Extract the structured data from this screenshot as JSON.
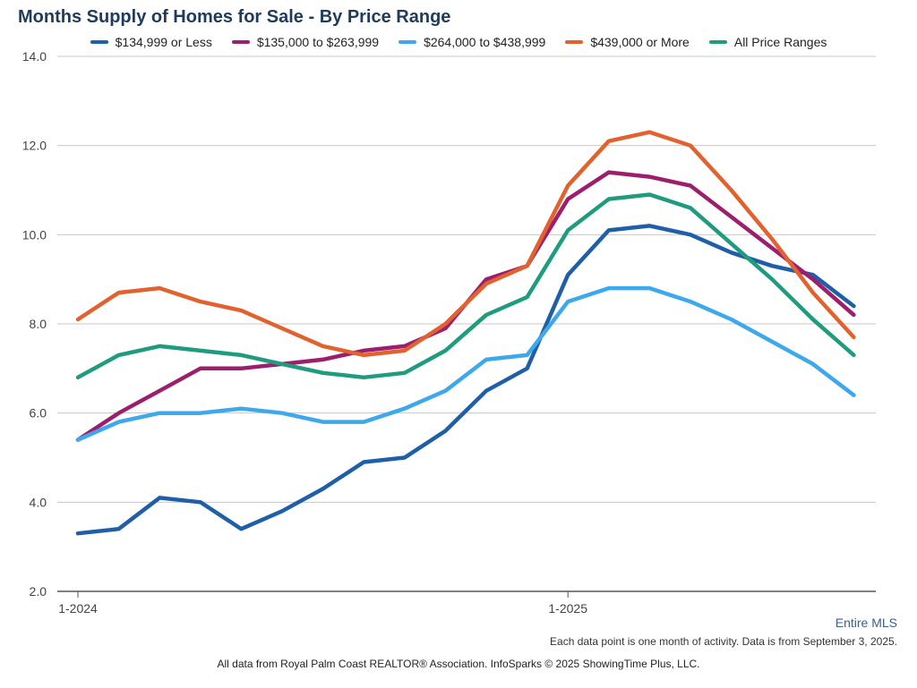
{
  "chart_data": {
    "type": "line",
    "title": "Months Supply of Homes for Sale - By Price Range",
    "xlabel": "",
    "ylabel": "",
    "ylim": [
      2.0,
      14.0
    ],
    "yticks": [
      "2.0",
      "4.0",
      "6.0",
      "8.0",
      "10.0",
      "12.0",
      "14.0"
    ],
    "xtick_labels": [
      {
        "label": "1-2024",
        "index": 0
      },
      {
        "label": "1-2025",
        "index": 12
      }
    ],
    "grid": true,
    "legend_position": "top",
    "x": [
      "1-2024",
      "2-2024",
      "3-2024",
      "4-2024",
      "5-2024",
      "6-2024",
      "7-2024",
      "8-2024",
      "9-2024",
      "10-2024",
      "11-2024",
      "12-2024",
      "1-2025",
      "2-2025",
      "3-2025",
      "4-2025",
      "5-2025",
      "6-2025",
      "7-2025",
      "8-2025"
    ],
    "series": [
      {
        "name": "$134,999 or Less",
        "color": "#1f5fa8",
        "values": [
          3.3,
          3.4,
          4.1,
          4.0,
          3.4,
          3.8,
          4.3,
          4.9,
          5.0,
          5.6,
          6.5,
          7.0,
          9.1,
          10.1,
          10.2,
          10.0,
          9.6,
          9.3,
          9.1,
          8.4
        ]
      },
      {
        "name": "$135,000 to $263,999",
        "color": "#9c1f6e",
        "values": [
          5.4,
          6.0,
          6.5,
          7.0,
          7.0,
          7.1,
          7.2,
          7.4,
          7.5,
          7.9,
          9.0,
          9.3,
          10.8,
          11.4,
          11.3,
          11.1,
          10.4,
          9.7,
          9.0,
          8.2
        ]
      },
      {
        "name": "$264,000 to $438,999",
        "color": "#3ea8ec",
        "values": [
          5.4,
          5.8,
          6.0,
          6.0,
          6.1,
          6.0,
          5.8,
          5.8,
          6.1,
          6.5,
          7.2,
          7.3,
          8.5,
          8.8,
          8.8,
          8.5,
          8.1,
          7.6,
          7.1,
          6.4
        ]
      },
      {
        "name": "$439,000 or More",
        "color": "#e2622f",
        "values": [
          8.1,
          8.7,
          8.8,
          8.5,
          8.3,
          7.9,
          7.5,
          7.3,
          7.4,
          8.0,
          8.9,
          9.3,
          11.1,
          12.1,
          12.3,
          12.0,
          11.0,
          9.9,
          8.7,
          7.7
        ]
      },
      {
        "name": "All Price Ranges",
        "color": "#1f9c7e",
        "values": [
          6.8,
          7.3,
          7.5,
          7.4,
          7.3,
          7.1,
          6.9,
          6.8,
          6.9,
          7.4,
          8.2,
          8.6,
          10.1,
          10.8,
          10.9,
          10.6,
          9.8,
          9.0,
          8.1,
          7.3
        ]
      }
    ]
  },
  "footer": {
    "scope": "Entire MLS",
    "note": "Each data point is one month of activity. Data is from September 3, 2025.",
    "source": "All data from Royal Palm Coast REALTOR® Association. InfoSparks © 2025 ShowingTime Plus, LLC."
  }
}
